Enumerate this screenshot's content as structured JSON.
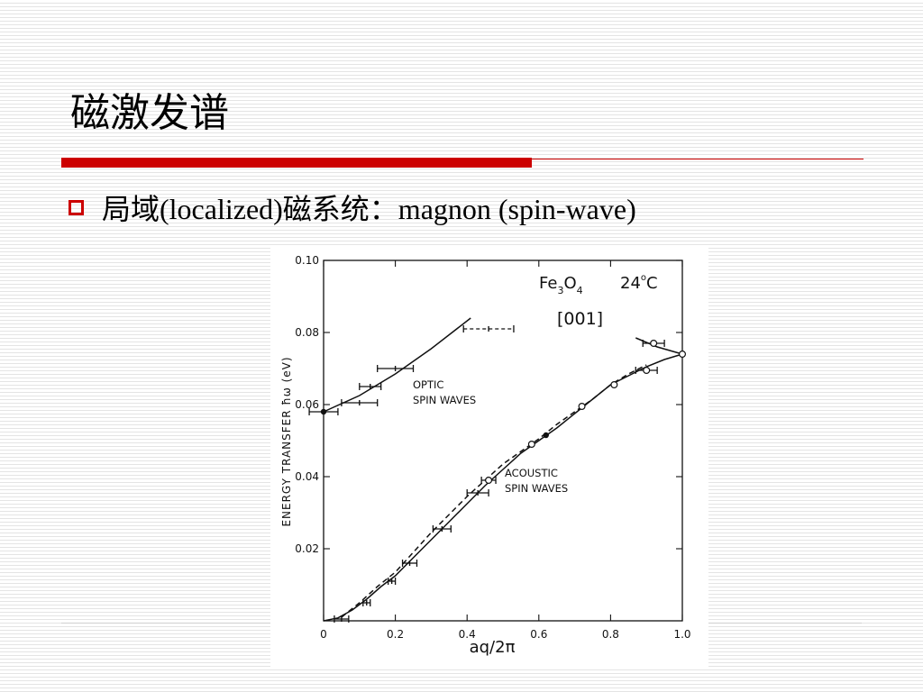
{
  "slide": {
    "title": "磁激发谱",
    "bullet": "局域(localized)磁系统：magnon (spin-wave)",
    "bullet_icon": "hollow-square-icon",
    "colors": {
      "accent": "#cc0000",
      "title_rule": "#cc0000",
      "thin_rule": "#cc0000",
      "text": "#000000"
    }
  },
  "chart_data": {
    "type": "scatter",
    "title": "",
    "xlabel": "aq/2π",
    "ylabel": "ENERGY TRANSFER ħω (eV)",
    "xlim": [
      0,
      1.0
    ],
    "ylim": [
      0,
      0.1
    ],
    "xticks": [
      0,
      0.2,
      0.4,
      0.6,
      0.8,
      1.0
    ],
    "xtick_labels": [
      "0",
      "0.2",
      "0.4",
      "0.6",
      "0.8",
      "1.0"
    ],
    "yticks": [
      0.02,
      0.04,
      0.06,
      0.08,
      0.1
    ],
    "ytick_labels": [
      "0.02",
      "0.04",
      "0.06",
      "0.08",
      "0.10"
    ],
    "grid": false,
    "annotations": {
      "material_main": "Fe",
      "material_sub1": "3",
      "material_mid": "O",
      "material_sub2": "4",
      "temperature_main": "24",
      "temperature_sup": "o",
      "temperature_unit": "C",
      "direction": "[001]",
      "optic_line1": "OPTIC",
      "optic_line2": "SPIN WAVES",
      "acoustic_line1": "ACOUSTIC",
      "acoustic_line2": "SPIN WAVES"
    },
    "optic_curve": {
      "x": [
        0,
        0.1,
        0.2,
        0.3,
        0.41
      ],
      "y": [
        0.058,
        0.0625,
        0.0685,
        0.0755,
        0.084
      ]
    },
    "optic_points": [
      {
        "x": 0.0,
        "y": 0.058,
        "xerr": 0.04,
        "style": "solid",
        "marker": "filled"
      },
      {
        "x": 0.1,
        "y": 0.0605,
        "xerr": 0.05,
        "style": "solid",
        "marker": "none"
      },
      {
        "x": 0.13,
        "y": 0.065,
        "xerr": 0.03,
        "style": "solid",
        "marker": "none"
      },
      {
        "x": 0.2,
        "y": 0.07,
        "xerr": 0.05,
        "style": "solid",
        "marker": "none"
      },
      {
        "x": 0.46,
        "y": 0.081,
        "xerr": 0.07,
        "style": "dashed",
        "marker": "none"
      }
    ],
    "optic_tail": {
      "x": [
        0.87,
        0.93,
        1.0
      ],
      "y": [
        0.0785,
        0.076,
        0.074
      ]
    },
    "acoustic_solid": {
      "x": [
        0,
        0.04,
        0.08,
        0.12,
        0.16,
        0.2,
        0.25,
        0.3,
        0.35,
        0.4,
        0.45,
        0.5,
        0.55,
        0.6,
        0.65,
        0.7,
        0.75,
        0.8,
        0.85,
        0.9,
        0.95,
        1.0
      ],
      "y": [
        0,
        0.0008,
        0.003,
        0.006,
        0.0095,
        0.0125,
        0.0175,
        0.0225,
        0.0275,
        0.0325,
        0.0375,
        0.042,
        0.0465,
        0.05,
        0.0535,
        0.0575,
        0.0615,
        0.0655,
        0.068,
        0.0705,
        0.0725,
        0.074
      ]
    },
    "acoustic_dashed": {
      "x": [
        0.05,
        0.1,
        0.15,
        0.2,
        0.25,
        0.3,
        0.35,
        0.4,
        0.45,
        0.5,
        0.55,
        0.6,
        0.65,
        0.7,
        0.75,
        0.8,
        0.85,
        0.9
      ],
      "y": [
        0.001,
        0.005,
        0.0095,
        0.0135,
        0.019,
        0.0245,
        0.0295,
        0.0345,
        0.039,
        0.0435,
        0.047,
        0.0505,
        0.0545,
        0.058,
        0.0615,
        0.0655,
        0.0685,
        0.071
      ]
    },
    "acoustic_points": [
      {
        "x": 0.05,
        "y": 0.0005,
        "xerr": 0.02,
        "marker": "none"
      },
      {
        "x": 0.12,
        "y": 0.005,
        "xerr": 0.01,
        "marker": "none"
      },
      {
        "x": 0.19,
        "y": 0.011,
        "xerr": 0.01,
        "marker": "none"
      },
      {
        "x": 0.24,
        "y": 0.016,
        "xerr": 0.02,
        "marker": "none"
      },
      {
        "x": 0.33,
        "y": 0.0255,
        "xerr": 0.025,
        "marker": "none"
      },
      {
        "x": 0.43,
        "y": 0.0355,
        "xerr": 0.03,
        "marker": "none"
      },
      {
        "x": 0.46,
        "y": 0.039,
        "xerr": 0.02,
        "marker": "open"
      },
      {
        "x": 0.58,
        "y": 0.049,
        "xerr": 0,
        "marker": "open"
      },
      {
        "x": 0.62,
        "y": 0.0515,
        "xerr": 0,
        "marker": "filled"
      },
      {
        "x": 0.72,
        "y": 0.0595,
        "xerr": 0,
        "marker": "open"
      },
      {
        "x": 0.81,
        "y": 0.0655,
        "xerr": 0,
        "marker": "open"
      },
      {
        "x": 0.9,
        "y": 0.0695,
        "xerr": 0.03,
        "marker": "open"
      },
      {
        "x": 0.92,
        "y": 0.077,
        "xerr": 0.03,
        "marker": "open"
      },
      {
        "x": 1.0,
        "y": 0.074,
        "xerr": 0,
        "marker": "open"
      }
    ]
  }
}
